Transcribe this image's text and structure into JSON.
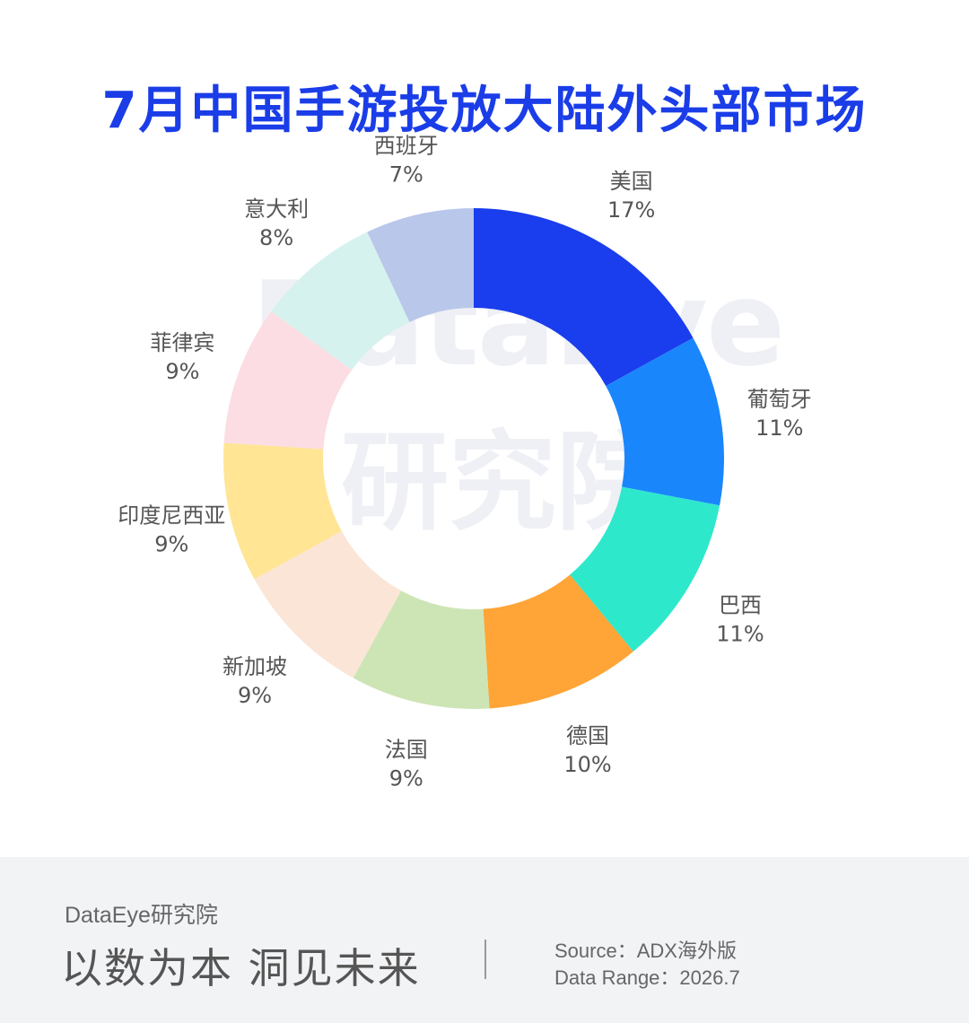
{
  "title": "7月中国手游投放大陆外头部市场",
  "watermark": {
    "en": "DataEye",
    "cn": "研究院"
  },
  "chart_data": {
    "type": "donut",
    "title": "7月中国手游投放大陆外头部市场",
    "unit": "%",
    "categories": [
      "美国",
      "葡萄牙",
      "巴西",
      "德国",
      "法国",
      "新加坡",
      "印度尼西亚",
      "菲律宾",
      "意大利",
      "西班牙"
    ],
    "values": [
      17,
      11,
      11,
      10,
      9,
      9,
      9,
      9,
      8,
      7
    ],
    "value_labels": [
      "17%",
      "11%",
      "11%",
      "10%",
      "9%",
      "9%",
      "9%",
      "9%",
      "8%",
      "7%"
    ],
    "colors": [
      "#1a3ded",
      "#1a86fc",
      "#2ee8cc",
      "#ffa436",
      "#cde5b5",
      "#fbe5d7",
      "#ffe594",
      "#fbdde3",
      "#d6f2ef",
      "#b9c7ea"
    ],
    "start": "12 o'clock",
    "direction": "clockwise"
  },
  "footer": {
    "brand": "DataEye研究院",
    "slogan": "以数为本 洞见未来",
    "source": "Source：ADX海外版",
    "range": "Data Range：2026.7"
  }
}
